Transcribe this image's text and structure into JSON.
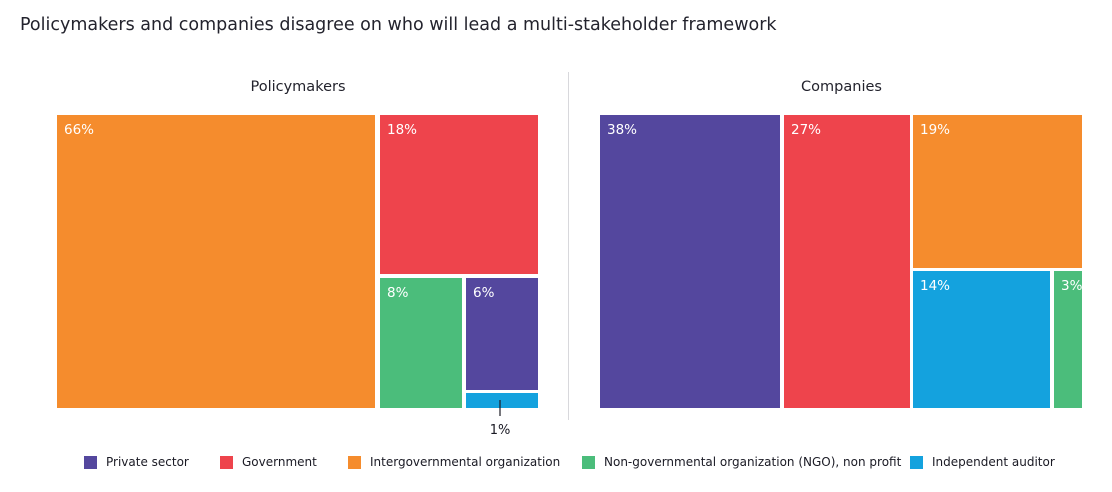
{
  "chart_data": {
    "type": "treemap",
    "title": "Policymakers and companies disagree on who will lead a multi-stakeholder framework",
    "categories": [
      {
        "key": "private",
        "name": "Private sector",
        "color": "#54479e"
      },
      {
        "key": "government",
        "name": "Government",
        "color": "#ee444c"
      },
      {
        "key": "intergov",
        "name": "Intergovernmental organization",
        "color": "#f58c2d"
      },
      {
        "key": "ngo",
        "name": "Non-governmental organization (NGO), non profit",
        "color": "#4bbd7b"
      },
      {
        "key": "auditor",
        "name": "Independent auditor",
        "color": "#14a2de"
      }
    ],
    "panels": [
      {
        "name": "Policymakers",
        "values": [
          {
            "category": "intergov",
            "value": 66,
            "label": "66%"
          },
          {
            "category": "government",
            "value": 18,
            "label": "18%"
          },
          {
            "category": "ngo",
            "value": 8,
            "label": "8%"
          },
          {
            "category": "private",
            "value": 6,
            "label": "6%"
          },
          {
            "category": "auditor",
            "value": 1,
            "label": "1%"
          }
        ]
      },
      {
        "name": "Companies",
        "values": [
          {
            "category": "private",
            "value": 38,
            "label": "38%"
          },
          {
            "category": "government",
            "value": 27,
            "label": "27%"
          },
          {
            "category": "intergov",
            "value": 19,
            "label": "19%"
          },
          {
            "category": "auditor",
            "value": 14,
            "label": "14%"
          },
          {
            "category": "ngo",
            "value": 3,
            "label": "3%"
          }
        ]
      }
    ],
    "legend_position": "bottom"
  }
}
